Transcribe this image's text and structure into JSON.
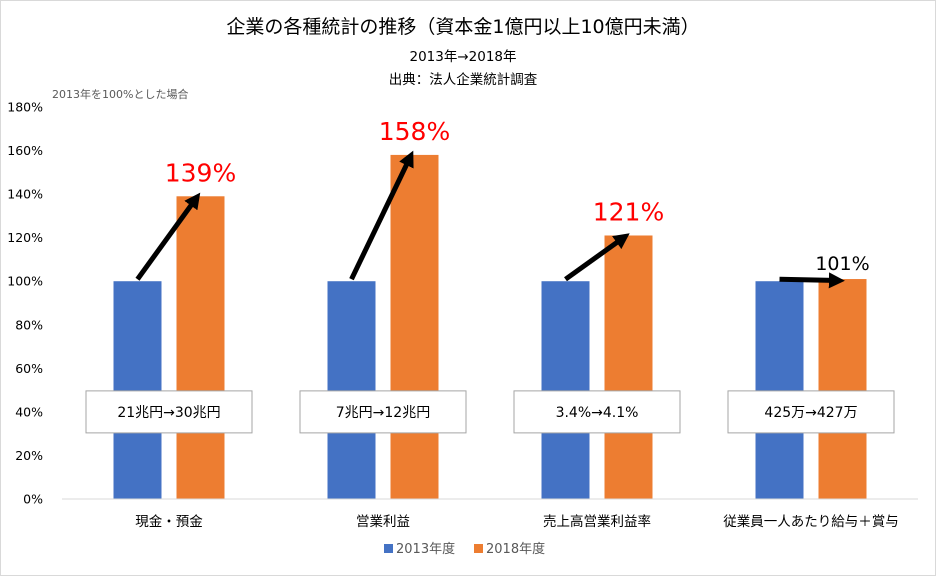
{
  "chart_data": {
    "type": "bar",
    "title": "企業の各種統計の推移（資本金1億円以上10億円未満）",
    "subtitle": "2013年→2018年",
    "source": "出典：法人企業統計調査",
    "ylabel_note": "2013年を100%とした場合",
    "ylim": [
      0,
      180
    ],
    "yticks": [
      0,
      20,
      40,
      60,
      80,
      100,
      120,
      140,
      160,
      180
    ],
    "ytick_labels": [
      "0%",
      "20%",
      "40%",
      "60%",
      "80%",
      "100%",
      "120%",
      "140%",
      "160%",
      "180%"
    ],
    "categories": [
      "現金・預金",
      "営業利益",
      "売上高営業利益率",
      "従業員一人あたり給与＋賞与"
    ],
    "series": [
      {
        "name": "2013年度",
        "color": "#4472c4",
        "values": [
          100,
          100,
          100,
          100
        ]
      },
      {
        "name": "2018年度",
        "color": "#ed7d31",
        "values": [
          139,
          158,
          121,
          101
        ]
      }
    ],
    "growth_labels": [
      "139%",
      "158%",
      "121%",
      "101%"
    ],
    "growth_label_colors": [
      "#ff0000",
      "#ff0000",
      "#ff0000",
      "#000000"
    ],
    "value_boxes": [
      "21兆円→30兆円",
      "7兆円→12兆円",
      "3.4%→4.1%",
      "425万→427万"
    ],
    "value_box_level": 40,
    "legend_position": "bottom",
    "grid": false
  }
}
